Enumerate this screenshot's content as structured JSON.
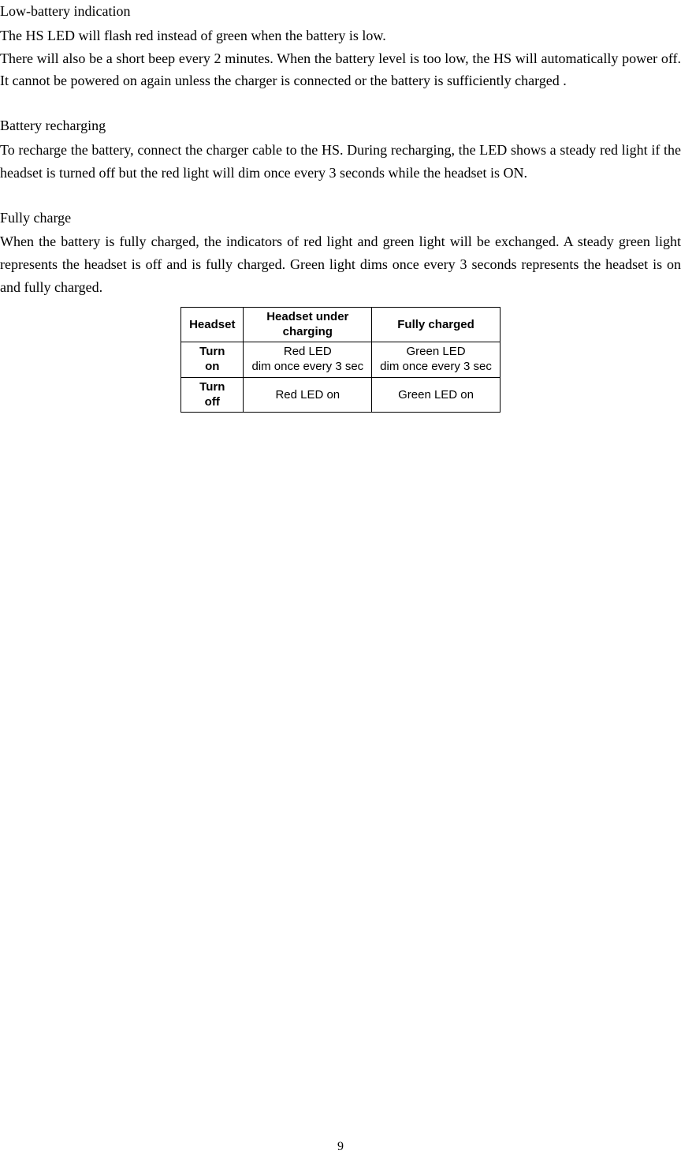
{
  "sections": {
    "lowBattery": {
      "title": "Low-battery indication",
      "body": "The HS LED will flash red instead of green when the battery is low.\nThere will also be a short beep every 2 minutes.   When the battery level is too low, the HS will automatically power off.   It cannot be powered on again unless the charger is connected or the battery is sufficiently charged ."
    },
    "recharging": {
      "title": "Battery recharging",
      "body": "To recharge the battery, connect the charger cable to the HS.   During recharging, the LED shows a steady red light if the headset is turned off but the red light will dim once every 3 seconds while the headset is ON."
    },
    "fullyCharge": {
      "title": "Fully charge",
      "body": "When the battery is fully charged, the indicators of red light and green light will be exchanged. A steady green light represents the headset is off and is fully charged.   Green light dims once every 3 seconds represents the headset is on and fully charged."
    }
  },
  "table": {
    "headers": {
      "col1": "Headset",
      "col2": "Headset under\ncharging",
      "col3": "Fully  charged"
    },
    "rows": [
      {
        "label": "Turn\non",
        "charging": "Red  LED\ndim once every 3 sec",
        "full": "Green  LED\ndim once every 3 sec"
      },
      {
        "label": "Turn\noff",
        "charging": "Red  LED on",
        "full": "Green  LED on"
      }
    ]
  },
  "pageNumber": "9",
  "styling": {
    "bodyFontFamily": "Times New Roman",
    "bodyFontSize": 18,
    "tableFontFamily": "Arial",
    "tableFontSize": 15,
    "textColor": "#000000",
    "backgroundColor": "#ffffff",
    "borderColor": "#000000",
    "pageWidth": 864,
    "pageHeight": 1487
  }
}
